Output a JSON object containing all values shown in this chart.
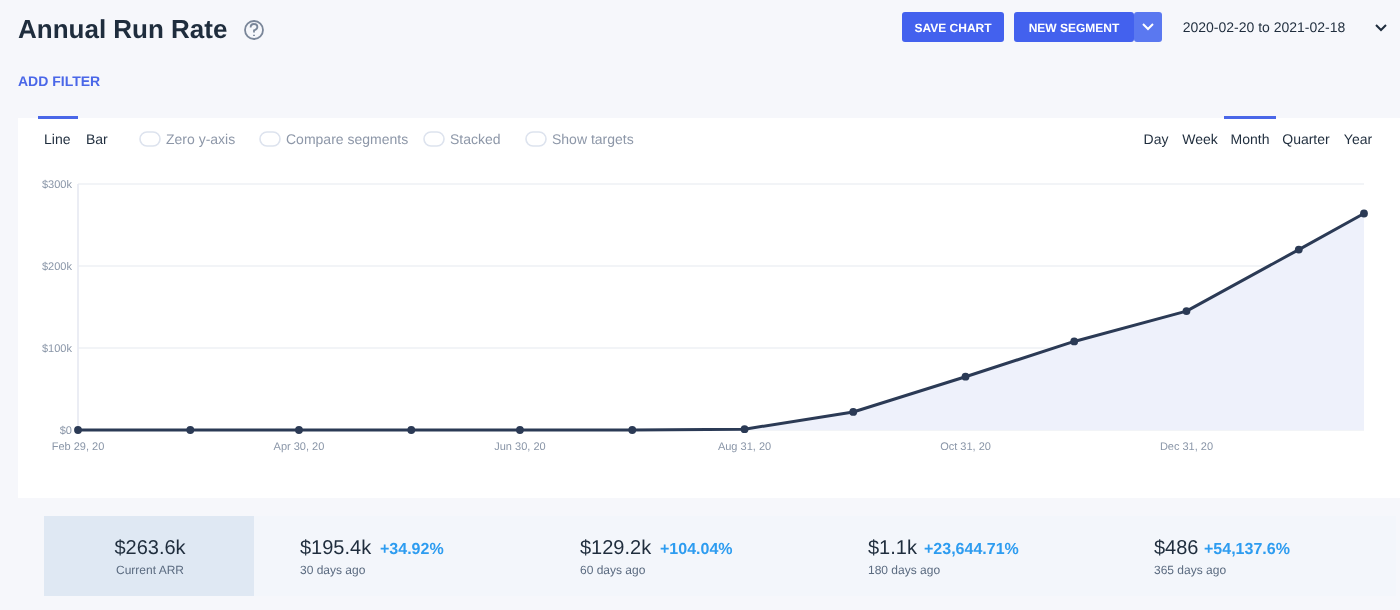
{
  "chart_data": {
    "type": "area",
    "title": "Annual Run Rate",
    "x": [
      "2020-02-29",
      "2020-03-31",
      "2020-04-30",
      "2020-05-31",
      "2020-06-30",
      "2020-07-31",
      "2020-08-31",
      "2020-09-30",
      "2020-10-31",
      "2020-11-30",
      "2020-12-31",
      "2021-01-31",
      "2021-02-18"
    ],
    "series": [
      {
        "color": "#2b3a55",
        "values": [
          0,
          0,
          0,
          0,
          0,
          0,
          1000,
          22000,
          65000,
          108000,
          145000,
          220000,
          264000
        ]
      }
    ],
    "xlim": [
      "2020-02-29",
      "2021-02-18"
    ],
    "xticks": [
      {
        "value": "2020-02-29",
        "label": "Feb 29, 20"
      },
      {
        "value": "2020-04-30",
        "label": "Apr 30, 20"
      },
      {
        "value": "2020-06-30",
        "label": "Jun 30, 20"
      },
      {
        "value": "2020-08-31",
        "label": "Aug 31, 20"
      },
      {
        "value": "2020-10-31",
        "label": "Oct 31, 20"
      },
      {
        "value": "2020-12-31",
        "label": "Dec 31, 20"
      }
    ],
    "ylim": [
      0,
      300000
    ],
    "yticks": [
      {
        "value": 0,
        "label": "$0"
      },
      {
        "value": 100000,
        "label": "$100k"
      },
      {
        "value": 200000,
        "label": "$200k"
      },
      {
        "value": 300000,
        "label": "$300k"
      }
    ],
    "grid": "y",
    "marker": "circle",
    "line_style": "solid",
    "annotations": [
      "SAVE CHART",
      "NEW SEGMENT",
      "2020-02-20 to 2021-02-18",
      "ADD FILTER",
      "Line",
      "Bar",
      "Zero y-axis",
      "Compare segments",
      "Stacked",
      "Show targets",
      "Day",
      "Week",
      "Month",
      "Quarter",
      "Year",
      "$263.6k",
      "Current ARR",
      "$195.4k",
      "+34.92%",
      "30 days ago",
      "$129.2k",
      "+104.04%",
      "60 days ago",
      "$1.1k",
      "+23,644.71%",
      "180 days ago",
      "$486",
      "+54,137.6%",
      "365 days ago"
    ]
  }
}
